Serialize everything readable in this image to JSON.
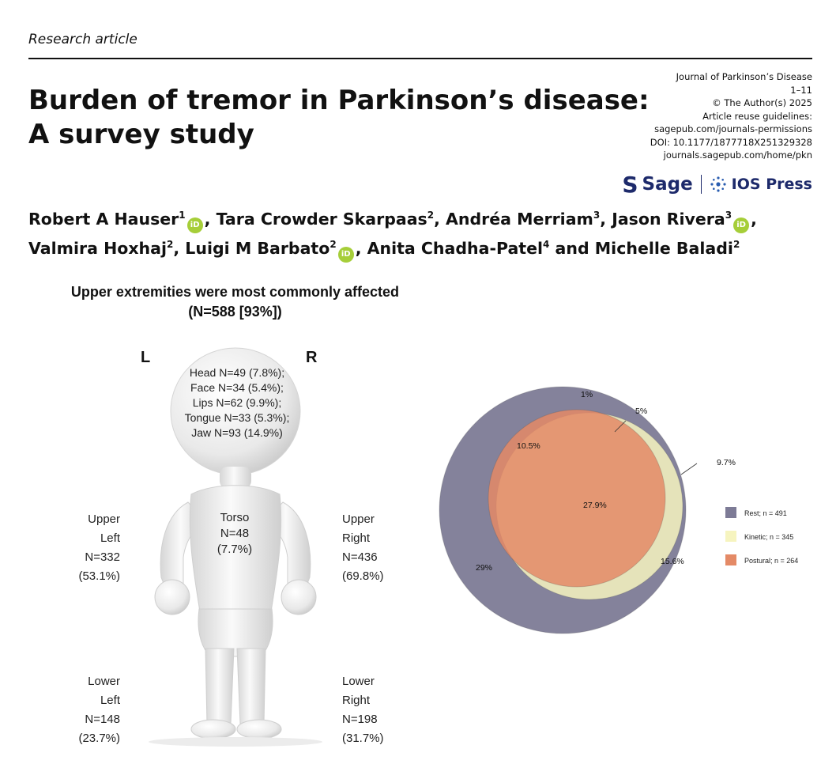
{
  "header": {
    "article_type": "Research article",
    "title_line1": "Burden of tremor in Parkinson’s disease:",
    "title_line2": "A survey study",
    "journal": "Journal of Parkinson’s Disease",
    "pages": "1–11",
    "copyright": "© The Author(s) 2025",
    "reuse_label": "Article reuse guidelines:",
    "reuse_url": "sagepub.com/journals-permissions",
    "doi": "DOI: 10.1177/1877718X251329328",
    "homepage": "journals.sagepub.com/home/pkn",
    "publisher1": "Sage",
    "publisher2": "IOS Press"
  },
  "authors": [
    {
      "name": "Robert A Hauser",
      "aff": "1",
      "orcid": true,
      "sep": ", "
    },
    {
      "name": "Tara Crowder Skarpaas",
      "aff": "2",
      "orcid": false,
      "sep": ", "
    },
    {
      "name": "Andréa Merriam",
      "aff": "3",
      "orcid": false,
      "sep": ", "
    },
    {
      "name": "Jason Rivera",
      "aff": "3",
      "orcid": true,
      "sep": ","
    },
    {
      "name": "Valmira Hoxhaj",
      "aff": "2",
      "orcid": false,
      "sep": ", "
    },
    {
      "name": "Luigi M Barbato",
      "aff": "2",
      "orcid": true,
      "sep": ", "
    },
    {
      "name": "Anita Chadha-Patel",
      "aff": "4",
      "orcid": false,
      "sep": " and "
    },
    {
      "name": "Michelle Baladi",
      "aff": "2",
      "orcid": false,
      "sep": ""
    }
  ],
  "figure": {
    "title_line1": "Upper extremities were most commonly affected",
    "title_line2": "(N=588 [93%])",
    "side_left": "L",
    "side_right": "R",
    "head_lines": [
      "Head N=49 (7.8%);",
      "Face N=34 (5.4%);",
      "Lips N=62 (9.9%);",
      "Tongue N=33 (5.3%);",
      "Jaw N=93 (14.9%)"
    ],
    "torso": [
      "Torso",
      "N=48",
      "(7.7%)"
    ],
    "upper_left": [
      "Upper",
      "Left",
      "N=332",
      "(53.1%)"
    ],
    "upper_right": [
      "Upper",
      "Right",
      "N=436",
      "(69.8%)"
    ],
    "lower_left": [
      "Lower",
      "Left",
      "N=148",
      "(23.7%)"
    ],
    "lower_right": [
      "Lower",
      "Right",
      "N=198",
      "(31.7%)"
    ]
  },
  "chart_data": {
    "type": "venn",
    "sets": [
      {
        "name": "Rest; n = 491",
        "n": 491,
        "color": "#7d7b96"
      },
      {
        "name": "Kinetic; n = 345",
        "n": 345,
        "color": "#f6f4bf"
      },
      {
        "name": "Postural; n = 264",
        "n": 264,
        "color": "#e48a66"
      }
    ],
    "region_labels": [
      {
        "label": "1%",
        "region": "Postural only"
      },
      {
        "label": "5%",
        "region": "Kinetic ∩ Postural"
      },
      {
        "label": "9.7%",
        "region": "Kinetic only"
      },
      {
        "label": "10.5%",
        "region": "Rest ∩ Postural"
      },
      {
        "label": "27.9%",
        "region": "Rest ∩ Kinetic ∩ Postural"
      },
      {
        "label": "15.6%",
        "region": "Rest ∩ Kinetic"
      },
      {
        "label": "29%",
        "region": "Rest only"
      }
    ],
    "legend_position": "right"
  }
}
